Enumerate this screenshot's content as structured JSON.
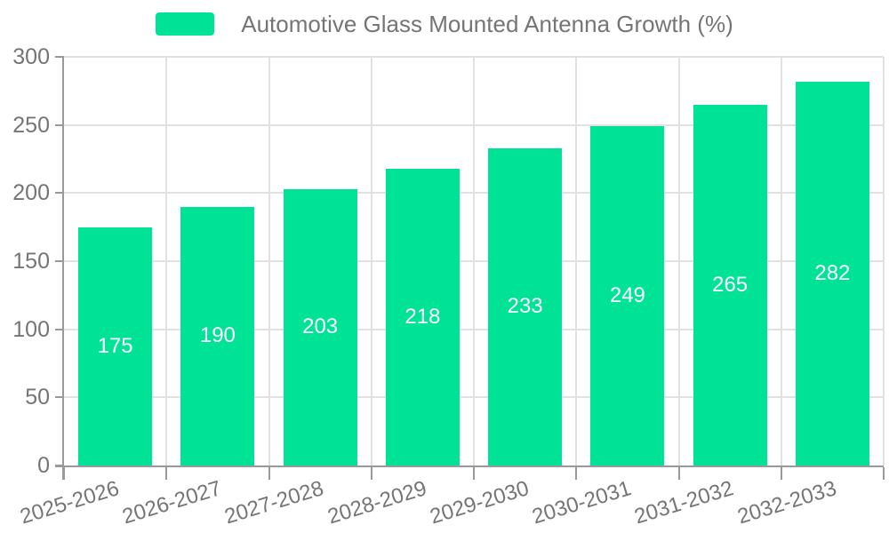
{
  "legend": {
    "label": "Automotive Glass Mounted Antenna Growth (%)"
  },
  "chart_data": {
    "type": "bar",
    "title": "Automotive Glass Mounted Antenna Growth (%)",
    "categories": [
      "2025-2026",
      "2026-2027",
      "2027-2028",
      "2028-2029",
      "2029-2030",
      "2030-2031",
      "2031-2032",
      "2032-2033"
    ],
    "values": [
      175,
      190,
      203,
      218,
      233,
      249,
      265,
      282
    ],
    "xlabel": "",
    "ylabel": "",
    "ylim": [
      0,
      300
    ],
    "yticks": [
      0,
      50,
      100,
      150,
      200,
      250,
      300
    ],
    "grid": true,
    "legend_position": "top",
    "bar_labels_inside": true
  },
  "colors": {
    "bar": "#00E396",
    "grid": "#e1e1e1",
    "axis": "#999999",
    "tick_label": "#757575",
    "legend_label": "#757575",
    "value_label": "#ffffff",
    "background": "#ffffff"
  }
}
